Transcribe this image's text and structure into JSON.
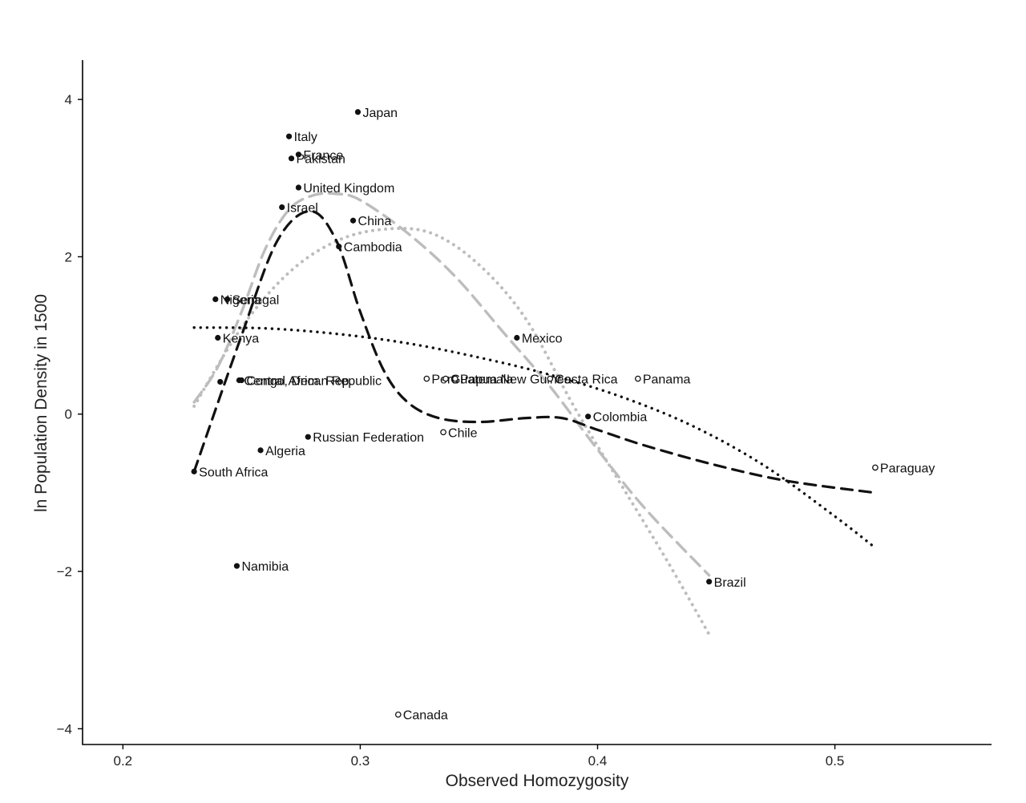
{
  "chart_data": {
    "type": "scatter",
    "title": "",
    "xlabel": "Observed Homozygosity",
    "ylabel": "ln Population Density in 1500",
    "xlim": [
      0.183,
      0.566
    ],
    "ylim": [
      -4.2,
      4.5
    ],
    "xticks": [
      0.2,
      0.3,
      0.4,
      0.5
    ],
    "xtick_labels": [
      "0.2",
      "0.3",
      "0.4",
      "0.5"
    ],
    "yticks": [
      -4,
      -2,
      0,
      2,
      4
    ],
    "ytick_labels": [
      "−4",
      "−2",
      "0",
      "2",
      "4"
    ],
    "grid": false,
    "legend": "none",
    "points": [
      {
        "label": "Japan",
        "x": 0.299,
        "y": 3.84,
        "marker": "filled"
      },
      {
        "label": "Italy",
        "x": 0.27,
        "y": 3.53,
        "marker": "filled"
      },
      {
        "label": "France",
        "x": 0.274,
        "y": 3.3,
        "marker": "filled"
      },
      {
        "label": "Pakistan",
        "x": 0.271,
        "y": 3.25,
        "marker": "filled"
      },
      {
        "label": "United Kingdom",
        "x": 0.274,
        "y": 2.88,
        "marker": "filled"
      },
      {
        "label": "Israel",
        "x": 0.267,
        "y": 2.63,
        "marker": "filled"
      },
      {
        "label": "China",
        "x": 0.297,
        "y": 2.46,
        "marker": "filled"
      },
      {
        "label": "Cambodia",
        "x": 0.291,
        "y": 2.13,
        "marker": "filled"
      },
      {
        "label": "Nigeria",
        "x": 0.239,
        "y": 1.46,
        "marker": "filled"
      },
      {
        "label": "Senegal",
        "x": 0.244,
        "y": 1.46,
        "marker": "filled"
      },
      {
        "label": "Kenya",
        "x": 0.24,
        "y": 0.97,
        "marker": "filled"
      },
      {
        "label": "Mexico",
        "x": 0.366,
        "y": 0.97,
        "marker": "filled"
      },
      {
        "label": "Central African Republic",
        "x": 0.249,
        "y": 0.43,
        "marker": "filled"
      },
      {
        "label": "Congo, Dem. Rep.",
        "x": 0.25,
        "y": 0.43,
        "marker": "filled"
      },
      {
        "label": "",
        "x": 0.241,
        "y": 0.41,
        "marker": "filled"
      },
      {
        "label": "Peru",
        "x": 0.328,
        "y": 0.45,
        "marker": "open"
      },
      {
        "label": "Guatemala",
        "x": 0.336,
        "y": 0.45,
        "marker": "open"
      },
      {
        "label": "Papua New Guinea",
        "x": 0.34,
        "y": 0.45,
        "marker": "open"
      },
      {
        "label": "Costa Rica",
        "x": 0.38,
        "y": 0.45,
        "marker": "open"
      },
      {
        "label": "Panama",
        "x": 0.417,
        "y": 0.45,
        "marker": "open"
      },
      {
        "label": "Colombia",
        "x": 0.396,
        "y": -0.03,
        "marker": "filled"
      },
      {
        "label": "Chile",
        "x": 0.335,
        "y": -0.23,
        "marker": "open"
      },
      {
        "label": "Russian Federation",
        "x": 0.278,
        "y": -0.29,
        "marker": "filled"
      },
      {
        "label": "Algeria",
        "x": 0.258,
        "y": -0.46,
        "marker": "filled"
      },
      {
        "label": "South Africa",
        "x": 0.23,
        "y": -0.73,
        "marker": "filled"
      },
      {
        "label": "Paraguay",
        "x": 0.517,
        "y": -0.68,
        "marker": "open"
      },
      {
        "label": "Namibia",
        "x": 0.248,
        "y": -1.93,
        "marker": "filled"
      },
      {
        "label": "Brazil",
        "x": 0.447,
        "y": -2.13,
        "marker": "filled"
      },
      {
        "label": "Canada",
        "x": 0.316,
        "y": -3.82,
        "marker": "open"
      }
    ],
    "series": [
      {
        "style": "dashed-black",
        "x": [
          0.23,
          0.25,
          0.265,
          0.279,
          0.29,
          0.3,
          0.31,
          0.32,
          0.333,
          0.35,
          0.37,
          0.385,
          0.4,
          0.42,
          0.45,
          0.48,
          0.517
        ],
        "y": [
          -0.73,
          1.0,
          2.2,
          2.58,
          2.2,
          1.3,
          0.55,
          0.15,
          -0.05,
          -0.1,
          -0.05,
          -0.05,
          -0.2,
          -0.4,
          -0.65,
          -0.85,
          -1.0
        ]
      },
      {
        "style": "dotted-black",
        "x": [
          0.23,
          0.26,
          0.29,
          0.32,
          0.35,
          0.38,
          0.41,
          0.44,
          0.47,
          0.5,
          0.517
        ],
        "y": [
          1.1,
          1.09,
          1.02,
          0.9,
          0.72,
          0.5,
          0.22,
          -0.15,
          -0.65,
          -1.3,
          -1.7
        ]
      },
      {
        "style": "dashed-gray",
        "x": [
          0.23,
          0.24,
          0.25,
          0.26,
          0.27,
          0.28,
          0.29,
          0.3,
          0.32,
          0.34,
          0.36,
          0.38,
          0.4,
          0.42,
          0.447
        ],
        "y": [
          0.15,
          0.6,
          1.3,
          2.1,
          2.6,
          2.78,
          2.8,
          2.72,
          2.3,
          1.75,
          1.05,
          0.35,
          -0.45,
          -1.2,
          -2.05
        ]
      },
      {
        "style": "dotted-gray",
        "x": [
          0.23,
          0.25,
          0.27,
          0.29,
          0.31,
          0.33,
          0.35,
          0.37,
          0.39,
          0.41,
          0.43,
          0.447
        ],
        "y": [
          0.1,
          1.1,
          1.8,
          2.2,
          2.35,
          2.3,
          1.9,
          1.2,
          0.1,
          -0.9,
          -1.9,
          -2.8
        ]
      }
    ]
  }
}
